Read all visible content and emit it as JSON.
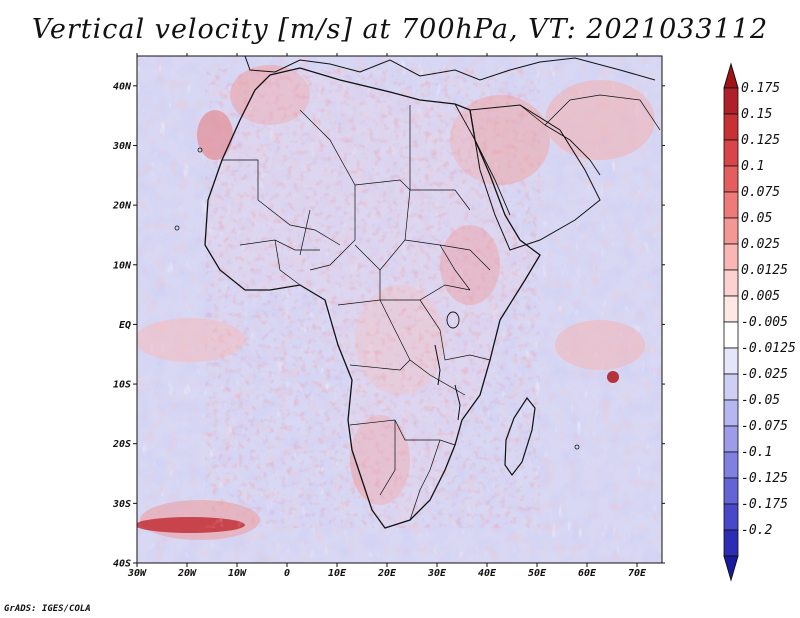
{
  "title": "Vertical velocity [m/s] at 700hPa, VT: 2021033112",
  "credit": "GrADS: IGES/COLA",
  "map": {
    "lon_range": [
      -30,
      75
    ],
    "lat_range": [
      -40,
      45
    ],
    "lon_ticks": [
      {
        "value": -30,
        "label": "30W"
      },
      {
        "value": -20,
        "label": "20W"
      },
      {
        "value": -10,
        "label": "10W"
      },
      {
        "value": 0,
        "label": "0"
      },
      {
        "value": 10,
        "label": "10E"
      },
      {
        "value": 20,
        "label": "20E"
      },
      {
        "value": 30,
        "label": "30E"
      },
      {
        "value": 40,
        "label": "40E"
      },
      {
        "value": 50,
        "label": "50E"
      },
      {
        "value": 60,
        "label": "60E"
      },
      {
        "value": 70,
        "label": "70E"
      }
    ],
    "lat_ticks": [
      {
        "value": 40,
        "label": "40N"
      },
      {
        "value": 30,
        "label": "30N"
      },
      {
        "value": 20,
        "label": "20N"
      },
      {
        "value": 10,
        "label": "10N"
      },
      {
        "value": 0,
        "label": "EQ"
      },
      {
        "value": -10,
        "label": "10S"
      },
      {
        "value": -20,
        "label": "20S"
      },
      {
        "value": -30,
        "label": "30S"
      },
      {
        "value": -40,
        "label": "40S"
      }
    ]
  },
  "colorbar": {
    "levels": [
      {
        "label": "0.175",
        "color": "#b0202a"
      },
      {
        "label": "0.15",
        "color": "#c83034"
      },
      {
        "label": "0.125",
        "color": "#d84448"
      },
      {
        "label": "0.1",
        "color": "#e45e60"
      },
      {
        "label": "0.075",
        "color": "#ee7a7a"
      },
      {
        "label": "0.05",
        "color": "#f49896"
      },
      {
        "label": "0.025",
        "color": "#f8b6b4"
      },
      {
        "label": "0.0125",
        "color": "#fcd2d0"
      },
      {
        "label": "0.005",
        "color": "#fee8e6"
      },
      {
        "label": "-0.005",
        "color": "#ffffff"
      },
      {
        "label": "-0.0125",
        "color": "#e6e6fb"
      },
      {
        "label": "-0.025",
        "color": "#cfcff6"
      },
      {
        "label": "-0.05",
        "color": "#b6b6f0"
      },
      {
        "label": "-0.075",
        "color": "#9c9ce8"
      },
      {
        "label": "-0.1",
        "color": "#8080e0"
      },
      {
        "label": "-0.125",
        "color": "#6464d6"
      },
      {
        "label": "-0.175",
        "color": "#4848c8"
      },
      {
        "label": "-0.2",
        "color": "#2c2cb4"
      }
    ],
    "top_color": "#a01418",
    "bottom_color": "#1a1aa0"
  }
}
